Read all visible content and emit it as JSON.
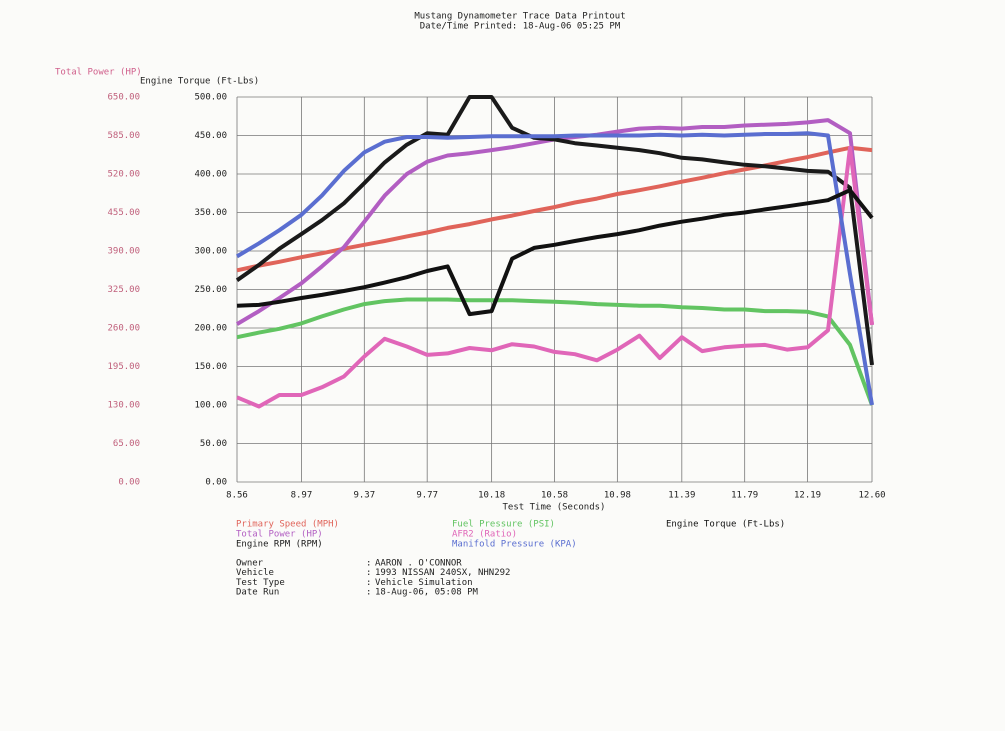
{
  "chart_data": {
    "type": "line",
    "title": "Mustang Dynamometer Trace Data Printout",
    "subtitle": "Date/Time Printed: 18-Aug-06 05:25 PM",
    "x_label": "Test Time (Seconds)",
    "y_label": "Total Power (HP)",
    "y2_label": "Engine Torque (Ft-Lbs)",
    "grid": true,
    "x": [
      8.56,
      8.7,
      8.83,
      8.97,
      9.1,
      9.24,
      9.37,
      9.5,
      9.64,
      9.77,
      9.9,
      10.04,
      10.18,
      10.31,
      10.45,
      10.58,
      10.71,
      10.85,
      10.98,
      11.12,
      11.25,
      11.39,
      11.52,
      11.66,
      11.79,
      11.92,
      12.06,
      12.19,
      12.32,
      12.46,
      12.6
    ],
    "xlim": [
      8.56,
      12.6
    ],
    "xticks": [
      8.56,
      8.97,
      9.37,
      9.77,
      10.18,
      10.58,
      10.98,
      11.39,
      11.79,
      12.19,
      {
        "value": 12.6,
        "label": "12.60"
      }
    ],
    "ylim": [
      0,
      650
    ],
    "yticks": [
      {
        "value": 0,
        "label": "0.00"
      },
      {
        "value": 65,
        "label": "65.00"
      },
      {
        "value": 130,
        "label": "130.00"
      },
      {
        "value": 195,
        "label": "195.00"
      },
      {
        "value": 260,
        "label": "260.00"
      },
      {
        "value": 325,
        "label": "325.00"
      },
      {
        "value": 390,
        "label": "390.00"
      },
      {
        "value": 455,
        "label": "455.00"
      },
      {
        "value": 520,
        "label": "520.00"
      },
      {
        "value": 585,
        "label": "585.00"
      },
      {
        "value": 650,
        "label": "650.00"
      }
    ],
    "y2lim": [
      0,
      500
    ],
    "y2ticks": [
      {
        "value": 0,
        "label": "0.00"
      },
      {
        "value": 50,
        "label": "50.00"
      },
      {
        "value": 100,
        "label": "100.00"
      },
      {
        "value": 150,
        "label": "150.00"
      },
      {
        "value": 200,
        "label": "200.00"
      },
      {
        "value": 250,
        "label": "250.00"
      },
      {
        "value": 300,
        "label": "300.00"
      },
      {
        "value": 350,
        "label": "350.00"
      },
      {
        "value": 400,
        "label": "400.00"
      },
      {
        "value": 450,
        "label": "450.00"
      },
      {
        "value": 500,
        "label": "500.00"
      }
    ],
    "series": [
      {
        "name": "Primary Speed (MPH)",
        "color": "#e0645a",
        "axis": "y2",
        "values": [
          275,
          281,
          286,
          292,
          297,
          303,
          308,
          313,
          319,
          324,
          330,
          335,
          341,
          346,
          352,
          357,
          363,
          368,
          374,
          379,
          384,
          390,
          395,
          401,
          406,
          411,
          417,
          422,
          428,
          434,
          431
        ]
      },
      {
        "name": "Total Power (HP)",
        "color": "#b25ec2",
        "axis": "y2",
        "values": [
          205,
          222,
          239,
          258,
          280,
          305,
          338,
          372,
          400,
          416,
          424,
          427,
          431,
          435,
          440,
          445,
          448,
          451,
          455,
          459,
          460,
          459,
          461,
          461,
          463,
          464,
          465,
          467,
          470,
          453,
          204
        ]
      },
      {
        "name": "Engine RPM (RPM)",
        "color": "#1a1a1a",
        "axis": "y2",
        "values": [
          262,
          282,
          303,
          322,
          340,
          362,
          388,
          415,
          438,
          453,
          451,
          500,
          500,
          460,
          447,
          445,
          440,
          437,
          434,
          431,
          427,
          421,
          419,
          415,
          412,
          410,
          407,
          404,
          403,
          382,
          152
        ]
      },
      {
        "name": "Fuel Pressure (PSI)",
        "color": "#62c462",
        "axis": "y2",
        "values": [
          188,
          194,
          199,
          206,
          215,
          224,
          231,
          235,
          237,
          237,
          237,
          236,
          236,
          236,
          235,
          234,
          233,
          231,
          230,
          229,
          229,
          227,
          226,
          224,
          224,
          222,
          222,
          221,
          215,
          178,
          100
        ]
      },
      {
        "name": "AFR2 (Ratio)",
        "color": "#e066b8",
        "axis": "y2",
        "values": [
          110,
          98,
          113,
          113,
          123,
          137,
          163,
          186,
          176,
          165,
          167,
          174,
          171,
          179,
          176,
          169,
          166,
          158,
          172,
          190,
          161,
          188,
          170,
          175,
          177,
          178,
          172,
          175,
          197,
          434,
          204
        ]
      },
      {
        "name": "Manifold Pressure (KPA)",
        "color": "#5a6ed0",
        "axis": "y2",
        "values": [
          293,
          310,
          327,
          347,
          372,
          404,
          428,
          442,
          448,
          448,
          447,
          448,
          449,
          449,
          449,
          449,
          450,
          450,
          450,
          450,
          451,
          450,
          451,
          450,
          451,
          452,
          452,
          453,
          450,
          270,
          100
        ]
      },
      {
        "name": "Engine Torque (Ft-Lbs)",
        "color": "#111111",
        "axis": "y2",
        "values": [
          229,
          230,
          234,
          239,
          243,
          248,
          253,
          259,
          266,
          274,
          280,
          218,
          222,
          290,
          304,
          308,
          313,
          318,
          322,
          327,
          333,
          338,
          342,
          347,
          350,
          354,
          358,
          362,
          366,
          379,
          343
        ]
      }
    ],
    "info": [
      [
        "Owner",
        "AARON . O'CONNOR"
      ],
      [
        "Vehicle",
        "1993 NISSAN 240SX, NHN292"
      ],
      [
        "Test Type",
        "Vehicle Simulation"
      ],
      [
        "Date Run",
        "18-Aug-06, 05:08 PM"
      ]
    ]
  }
}
